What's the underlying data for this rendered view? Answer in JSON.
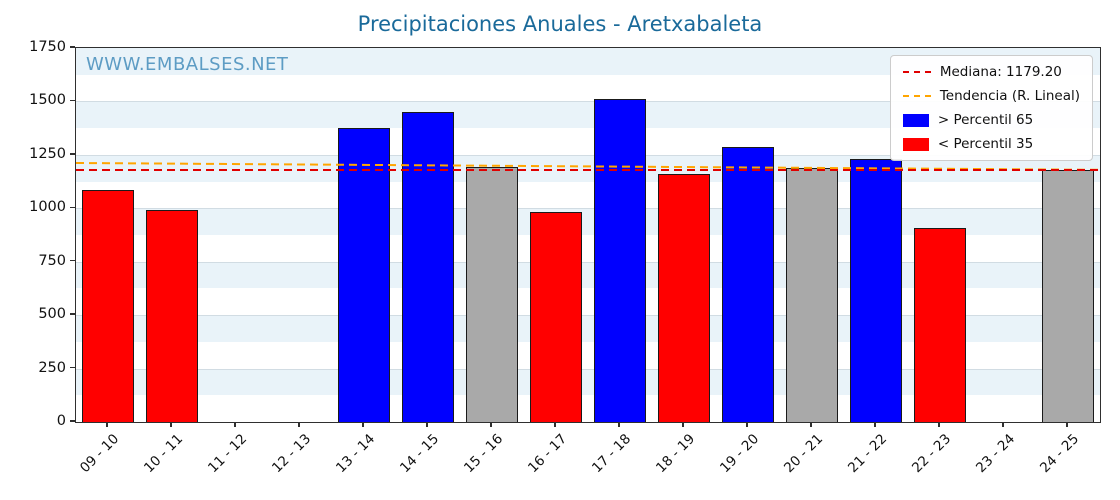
{
  "title": "Precipitaciones Anuales - Aretxabaleta",
  "watermark": "WWW.EMBALSES.NET",
  "chart_data": {
    "type": "bar",
    "title": "Precipitaciones Anuales - Aretxabaleta",
    "xlabel": "",
    "ylabel": "",
    "categories": [
      "09 - 10",
      "10 - 11",
      "11 - 12",
      "12 - 13",
      "13 - 14",
      "14 - 15",
      "15 - 16",
      "16 - 17",
      "17 - 18",
      "18 - 19",
      "19 - 20",
      "20 - 21",
      "21 - 22",
      "22 - 23",
      "23 - 24",
      "24 - 25"
    ],
    "values": [
      1085,
      990,
      0,
      0,
      1375,
      1450,
      1195,
      985,
      1510,
      1160,
      1285,
      1190,
      1230,
      910,
      0,
      1180
    ],
    "classes": [
      "p35",
      "p35",
      "none",
      "none",
      "p65",
      "p65",
      "mid",
      "p35",
      "p65",
      "p35",
      "p65",
      "mid",
      "p65",
      "p35",
      "none",
      "mid"
    ],
    "ylim": [
      0,
      1750
    ],
    "yticks": [
      0,
      250,
      500,
      750,
      1000,
      1250,
      1500,
      1750
    ],
    "band_size": 125,
    "grid": true,
    "median": 1179.2,
    "trend": {
      "x0_value": 1212,
      "x1_value": 1180
    },
    "colors": {
      "above_p65": "#0000ff",
      "below_p35": "#ff0000",
      "mid": "#a9a9a9",
      "bar_edge": "#1a1a1a",
      "median_line": "#e00000",
      "trend_line": "#ffa500",
      "stripe": "#e9f3f9",
      "title": "#1a6a9a",
      "watermark": "#5d9cc4"
    },
    "legend_position": "upper right",
    "legend": [
      {
        "label": "Mediana: 1179.20",
        "type": "line",
        "color": "#e00000"
      },
      {
        "label": "Tendencia (R. Lineal)",
        "type": "line",
        "color": "#ffa500"
      },
      {
        "label": "> Percentil 65",
        "type": "patch",
        "color": "#0000ff"
      },
      {
        "label": "< Percentil 35",
        "type": "patch",
        "color": "#ff0000"
      }
    ]
  }
}
